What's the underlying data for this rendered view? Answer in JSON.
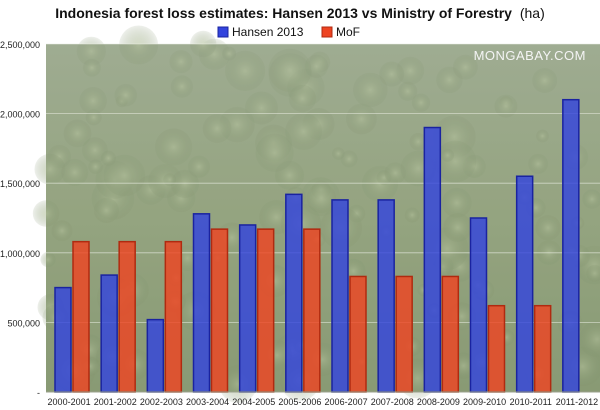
{
  "chart_data": {
    "type": "bar",
    "title": "Indonesia forest loss estimates: Hansen 2013 vs Ministry of Forestry",
    "title_unit": "(ha)",
    "watermark": "MONGABAY.COM",
    "categories": [
      "2000-2001",
      "2001-2002",
      "2002-2003",
      "2003-2004",
      "2004-2005",
      "2005-2006",
      "2006-2007",
      "2007-2008",
      "2008-2009",
      "2009-2010",
      "2010-2011",
      "2011-2012"
    ],
    "series": [
      {
        "name": "Hansen 2013",
        "color": "#3344dd",
        "values": [
          750000,
          840000,
          520000,
          1280000,
          1200000,
          1420000,
          1380000,
          1380000,
          1900000,
          1250000,
          1550000,
          2100000
        ]
      },
      {
        "name": "MoF",
        "color": "#ee4422",
        "values": [
          1080000,
          1080000,
          1080000,
          1170000,
          1170000,
          1170000,
          830000,
          830000,
          830000,
          620000,
          620000,
          null
        ]
      }
    ],
    "yticks": [
      0,
      500000,
      1000000,
      1500000,
      2000000,
      2500000
    ],
    "ytick_labels": [
      "-",
      "500,000",
      "1,000,000",
      "1,500,000",
      "2,000,000",
      "2,500,000"
    ],
    "ylim": [
      0,
      2500000
    ],
    "xlabel": "",
    "ylabel": "",
    "legend_position": "top-center",
    "grid": true,
    "background_image": "aerial-rainforest-canopy"
  }
}
